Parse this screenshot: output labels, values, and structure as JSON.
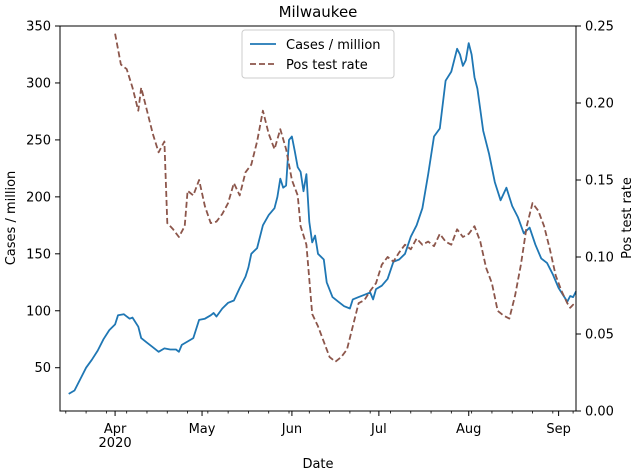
{
  "chart_data": {
    "type": "line",
    "title": "Milwaukee",
    "xlabel": "Date",
    "ylabel_left": "Cases / million",
    "ylabel_right": "Pos test rate",
    "xlim": [
      "2020-03-13",
      "2020-09-07"
    ],
    "ylim_left": [
      12,
      350
    ],
    "ylim_right": [
      0,
      0.25
    ],
    "x_ticks": [
      {
        "date": "2020-04-01",
        "label": "Apr",
        "sublabel": "2020"
      },
      {
        "date": "2020-05-01",
        "label": "May",
        "sublabel": ""
      },
      {
        "date": "2020-06-01",
        "label": "Jun",
        "sublabel": ""
      },
      {
        "date": "2020-07-01",
        "label": "Jul",
        "sublabel": ""
      },
      {
        "date": "2020-08-01",
        "label": "Aug",
        "sublabel": ""
      },
      {
        "date": "2020-09-01",
        "label": "Sep",
        "sublabel": ""
      }
    ],
    "y_ticks_left": [
      50,
      100,
      150,
      200,
      250,
      300,
      350
    ],
    "y_ticks_left_labels": [
      "50",
      "100",
      "150",
      "200",
      "250",
      "300",
      "350"
    ],
    "y_ticks_right": [
      0.0,
      0.05,
      0.1,
      0.15,
      0.2,
      0.25
    ],
    "y_ticks_right_labels": [
      "0.00",
      "0.05",
      "0.10",
      "0.15",
      "0.20",
      "0.25"
    ],
    "grid": false,
    "legend": {
      "placement": "top-center"
    },
    "series": [
      {
        "name": "Cases / million",
        "axis": "left",
        "color": "#1f77b4",
        "style": "solid",
        "points": [
          [
            "2020-03-16",
            27
          ],
          [
            "2020-03-18",
            30
          ],
          [
            "2020-03-20",
            40
          ],
          [
            "2020-03-22",
            50
          ],
          [
            "2020-03-24",
            57
          ],
          [
            "2020-03-26",
            65
          ],
          [
            "2020-03-28",
            75
          ],
          [
            "2020-03-30",
            83
          ],
          [
            "2020-04-01",
            88
          ],
          [
            "2020-04-02",
            96
          ],
          [
            "2020-04-04",
            97
          ],
          [
            "2020-04-06",
            93
          ],
          [
            "2020-04-07",
            94
          ],
          [
            "2020-04-09",
            86
          ],
          [
            "2020-04-10",
            76
          ],
          [
            "2020-04-12",
            72
          ],
          [
            "2020-04-14",
            68
          ],
          [
            "2020-04-16",
            64
          ],
          [
            "2020-04-18",
            67
          ],
          [
            "2020-04-20",
            66
          ],
          [
            "2020-04-22",
            66
          ],
          [
            "2020-04-23",
            64
          ],
          [
            "2020-04-24",
            70
          ],
          [
            "2020-04-26",
            73
          ],
          [
            "2020-04-28",
            76
          ],
          [
            "2020-04-30",
            92
          ],
          [
            "2020-05-02",
            93
          ],
          [
            "2020-05-04",
            96
          ],
          [
            "2020-05-05",
            98
          ],
          [
            "2020-05-06",
            95
          ],
          [
            "2020-05-08",
            102
          ],
          [
            "2020-05-10",
            107
          ],
          [
            "2020-05-12",
            109
          ],
          [
            "2020-05-14",
            120
          ],
          [
            "2020-05-16",
            130
          ],
          [
            "2020-05-17",
            138
          ],
          [
            "2020-05-18",
            150
          ],
          [
            "2020-05-20",
            155
          ],
          [
            "2020-05-22",
            175
          ],
          [
            "2020-05-24",
            184
          ],
          [
            "2020-05-26",
            190
          ],
          [
            "2020-05-27",
            200
          ],
          [
            "2020-05-28",
            216
          ],
          [
            "2020-05-29",
            208
          ],
          [
            "2020-05-30",
            210
          ],
          [
            "2020-05-31",
            250
          ],
          [
            "2020-06-01",
            253
          ],
          [
            "2020-06-02",
            240
          ],
          [
            "2020-06-03",
            226
          ],
          [
            "2020-06-04",
            222
          ],
          [
            "2020-06-05",
            205
          ],
          [
            "2020-06-06",
            220
          ],
          [
            "2020-06-07",
            178
          ],
          [
            "2020-06-08",
            160
          ],
          [
            "2020-06-09",
            166
          ],
          [
            "2020-06-10",
            150
          ],
          [
            "2020-06-12",
            145
          ],
          [
            "2020-06-13",
            125
          ],
          [
            "2020-06-15",
            112
          ],
          [
            "2020-06-17",
            108
          ],
          [
            "2020-06-19",
            104
          ],
          [
            "2020-06-21",
            102
          ],
          [
            "2020-06-22",
            110
          ],
          [
            "2020-06-24",
            112
          ],
          [
            "2020-06-26",
            114
          ],
          [
            "2020-06-28",
            116
          ],
          [
            "2020-06-29",
            110
          ],
          [
            "2020-06-30",
            119
          ],
          [
            "2020-07-02",
            122
          ],
          [
            "2020-07-04",
            128
          ],
          [
            "2020-07-06",
            143
          ],
          [
            "2020-07-08",
            145
          ],
          [
            "2020-07-10",
            150
          ],
          [
            "2020-07-12",
            165
          ],
          [
            "2020-07-14",
            175
          ],
          [
            "2020-07-16",
            190
          ],
          [
            "2020-07-18",
            220
          ],
          [
            "2020-07-20",
            253
          ],
          [
            "2020-07-22",
            260
          ],
          [
            "2020-07-24",
            302
          ],
          [
            "2020-07-26",
            310
          ],
          [
            "2020-07-28",
            330
          ],
          [
            "2020-07-29",
            325
          ],
          [
            "2020-07-30",
            315
          ],
          [
            "2020-07-31",
            320
          ],
          [
            "2020-08-01",
            335
          ],
          [
            "2020-08-02",
            325
          ],
          [
            "2020-08-03",
            305
          ],
          [
            "2020-08-04",
            295
          ],
          [
            "2020-08-06",
            258
          ],
          [
            "2020-08-08",
            238
          ],
          [
            "2020-08-10",
            213
          ],
          [
            "2020-08-12",
            197
          ],
          [
            "2020-08-14",
            208
          ],
          [
            "2020-08-16",
            192
          ],
          [
            "2020-08-18",
            182
          ],
          [
            "2020-08-20",
            168
          ],
          [
            "2020-08-22",
            173
          ],
          [
            "2020-08-24",
            158
          ],
          [
            "2020-08-26",
            146
          ],
          [
            "2020-08-28",
            142
          ],
          [
            "2020-08-30",
            132
          ],
          [
            "2020-09-01",
            120
          ],
          [
            "2020-09-03",
            112
          ],
          [
            "2020-09-04",
            108
          ],
          [
            "2020-09-05",
            113
          ],
          [
            "2020-09-06",
            112
          ],
          [
            "2020-09-07",
            117
          ]
        ]
      },
      {
        "name": "Pos test rate",
        "axis": "right",
        "color": "#8c564b",
        "style": "dashed",
        "points": [
          [
            "2020-04-01",
            0.245
          ],
          [
            "2020-04-03",
            0.225
          ],
          [
            "2020-04-05",
            0.222
          ],
          [
            "2020-04-07",
            0.21
          ],
          [
            "2020-04-09",
            0.195
          ],
          [
            "2020-04-10",
            0.21
          ],
          [
            "2020-04-12",
            0.195
          ],
          [
            "2020-04-14",
            0.18
          ],
          [
            "2020-04-16",
            0.168
          ],
          [
            "2020-04-18",
            0.175
          ],
          [
            "2020-04-19",
            0.122
          ],
          [
            "2020-04-21",
            0.118
          ],
          [
            "2020-04-23",
            0.113
          ],
          [
            "2020-04-25",
            0.12
          ],
          [
            "2020-04-26",
            0.143
          ],
          [
            "2020-04-28",
            0.14
          ],
          [
            "2020-04-30",
            0.15
          ],
          [
            "2020-05-02",
            0.133
          ],
          [
            "2020-05-04",
            0.122
          ],
          [
            "2020-05-06",
            0.123
          ],
          [
            "2020-05-08",
            0.128
          ],
          [
            "2020-05-10",
            0.135
          ],
          [
            "2020-05-12",
            0.148
          ],
          [
            "2020-05-14",
            0.14
          ],
          [
            "2020-05-16",
            0.155
          ],
          [
            "2020-05-18",
            0.16
          ],
          [
            "2020-05-20",
            0.175
          ],
          [
            "2020-05-22",
            0.195
          ],
          [
            "2020-05-24",
            0.18
          ],
          [
            "2020-05-26",
            0.17
          ],
          [
            "2020-05-28",
            0.183
          ],
          [
            "2020-05-30",
            0.17
          ],
          [
            "2020-06-01",
            0.15
          ],
          [
            "2020-06-03",
            0.14
          ],
          [
            "2020-06-04",
            0.12
          ],
          [
            "2020-06-06",
            0.108
          ],
          [
            "2020-06-08",
            0.063
          ],
          [
            "2020-06-10",
            0.055
          ],
          [
            "2020-06-12",
            0.045
          ],
          [
            "2020-06-14",
            0.035
          ],
          [
            "2020-06-16",
            0.032
          ],
          [
            "2020-06-18",
            0.035
          ],
          [
            "2020-06-20",
            0.04
          ],
          [
            "2020-06-22",
            0.055
          ],
          [
            "2020-06-24",
            0.07
          ],
          [
            "2020-06-26",
            0.072
          ],
          [
            "2020-06-28",
            0.078
          ],
          [
            "2020-06-30",
            0.083
          ],
          [
            "2020-07-02",
            0.095
          ],
          [
            "2020-07-04",
            0.1
          ],
          [
            "2020-07-06",
            0.097
          ],
          [
            "2020-07-08",
            0.103
          ],
          [
            "2020-07-10",
            0.108
          ],
          [
            "2020-07-12",
            0.105
          ],
          [
            "2020-07-14",
            0.112
          ],
          [
            "2020-07-16",
            0.108
          ],
          [
            "2020-07-18",
            0.11
          ],
          [
            "2020-07-20",
            0.107
          ],
          [
            "2020-07-22",
            0.115
          ],
          [
            "2020-07-24",
            0.11
          ],
          [
            "2020-07-26",
            0.108
          ],
          [
            "2020-07-28",
            0.118
          ],
          [
            "2020-07-30",
            0.113
          ],
          [
            "2020-08-01",
            0.115
          ],
          [
            "2020-08-03",
            0.12
          ],
          [
            "2020-08-05",
            0.11
          ],
          [
            "2020-08-07",
            0.093
          ],
          [
            "2020-08-09",
            0.083
          ],
          [
            "2020-08-11",
            0.065
          ],
          [
            "2020-08-13",
            0.062
          ],
          [
            "2020-08-15",
            0.06
          ],
          [
            "2020-08-17",
            0.075
          ],
          [
            "2020-08-19",
            0.095
          ],
          [
            "2020-08-21",
            0.12
          ],
          [
            "2020-08-23",
            0.135
          ],
          [
            "2020-08-25",
            0.13
          ],
          [
            "2020-08-27",
            0.12
          ],
          [
            "2020-08-29",
            0.105
          ],
          [
            "2020-08-31",
            0.088
          ],
          [
            "2020-09-02",
            0.078
          ],
          [
            "2020-09-04",
            0.07
          ],
          [
            "2020-09-05",
            0.067
          ],
          [
            "2020-09-06",
            0.069
          ],
          [
            "2020-09-07",
            0.068
          ]
        ]
      }
    ]
  }
}
